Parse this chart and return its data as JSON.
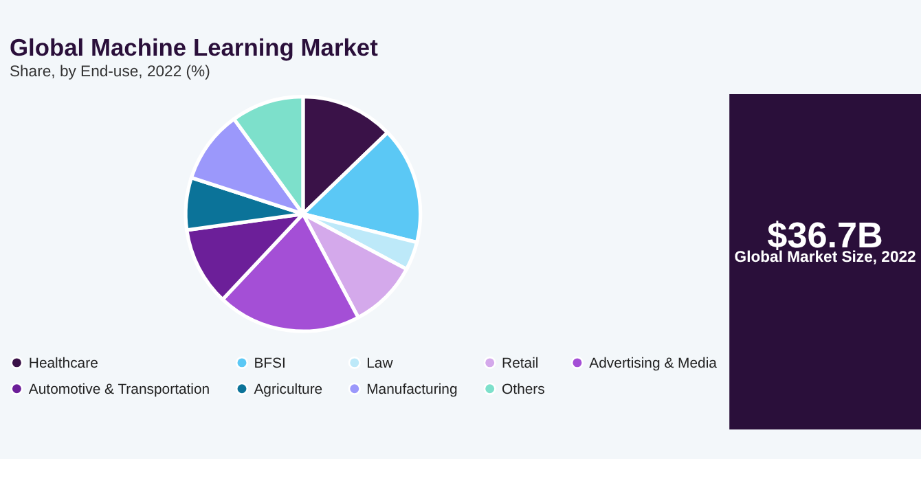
{
  "chart_data": {
    "type": "pie",
    "title": "Global Machine Learning Market",
    "subtitle": "Share, by End-use, 2022 (%)",
    "categories": [
      "Healthcare",
      "BFSI",
      "Law",
      "Retail",
      "Advertising & Media",
      "Automotive & Transportation",
      "Agriculture",
      "Manufacturing",
      "Others"
    ],
    "values": [
      12.8,
      16.1,
      3.9,
      9.4,
      19.8,
      10.8,
      7.2,
      10.0,
      10.0
    ],
    "colors": [
      "#3a1248",
      "#5bc8f5",
      "#bde9f9",
      "#d4a9eb",
      "#a44fd6",
      "#6c1f99",
      "#0b7399",
      "#9b98fb",
      "#7de0cb"
    ],
    "legend": "bottom",
    "annotations": [
      "$36.7B",
      "Global Market Size, 2022"
    ]
  }
}
